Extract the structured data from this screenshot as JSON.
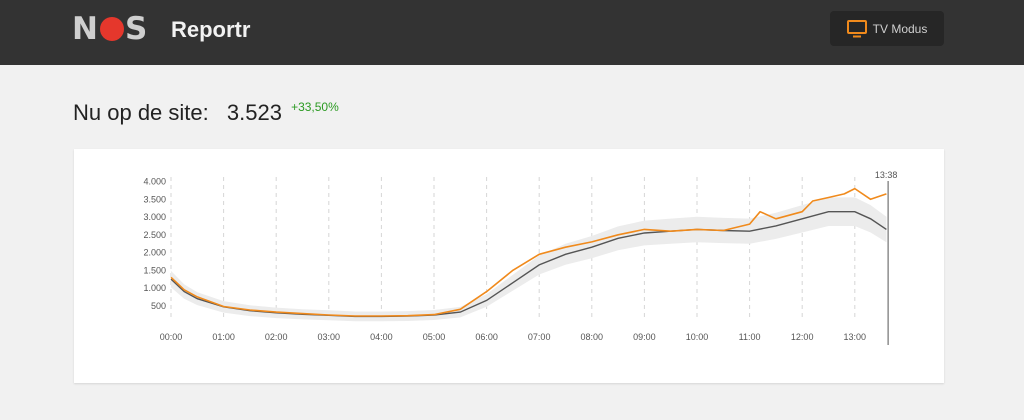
{
  "header": {
    "logo_text": "NOS",
    "app_title": "Reportr",
    "tv_button_label": "TV Modus",
    "tv_icon": "tv-icon"
  },
  "stats": {
    "label": "Nu op de site:",
    "count": "3.523",
    "delta": "+33,50%"
  },
  "colors": {
    "today_line": "#f08a1c",
    "average_line": "#555555",
    "band": "#ececec",
    "delta_positive": "#2b9a22",
    "topbar": "#333333"
  },
  "chart_data": {
    "type": "line",
    "time_marker": "13:38",
    "x_ticks": [
      "00:00",
      "01:00",
      "02:00",
      "03:00",
      "04:00",
      "05:00",
      "06:00",
      "07:00",
      "08:00",
      "09:00",
      "10:00",
      "11:00",
      "12:00",
      "13:00"
    ],
    "y_ticks": [
      "500",
      "1.000",
      "1.500",
      "2.000",
      "2.500",
      "3.000",
      "3.500",
      "4.000"
    ],
    "ylim": [
      0,
      4200
    ],
    "xlim": [
      0,
      13.633
    ],
    "grid": "vertical dashed",
    "series": [
      {
        "color": "#f08a1c",
        "x": [
          0,
          0.25,
          0.5,
          1,
          1.5,
          2,
          2.5,
          3,
          3.5,
          4,
          4.5,
          5,
          5.5,
          6,
          6.5,
          7,
          7.5,
          8,
          8.5,
          9,
          9.5,
          10,
          10.5,
          11,
          11.2,
          11.5,
          12,
          12.2,
          12.5,
          12.8,
          13,
          13.3,
          13.6
        ],
        "values": [
          1300,
          950,
          750,
          480,
          380,
          320,
          280,
          240,
          210,
          210,
          220,
          250,
          400,
          900,
          1500,
          1950,
          2150,
          2300,
          2500,
          2650,
          2600,
          2650,
          2620,
          2800,
          3150,
          2950,
          3150,
          3450,
          3550,
          3650,
          3800,
          3500,
          3650
        ]
      },
      {
        "color": "#555555",
        "x": [
          0,
          0.25,
          0.5,
          1,
          1.5,
          2,
          2.5,
          3,
          3.5,
          4,
          4.5,
          5,
          5.5,
          6,
          6.5,
          7,
          7.5,
          8,
          8.5,
          9,
          9.5,
          10,
          10.5,
          11,
          11.5,
          12,
          12.5,
          13,
          13.3,
          13.6
        ],
        "values": [
          1250,
          900,
          700,
          470,
          360,
          300,
          260,
          230,
          200,
          200,
          210,
          240,
          320,
          650,
          1150,
          1650,
          1950,
          2150,
          2400,
          2550,
          2600,
          2650,
          2620,
          2600,
          2750,
          2950,
          3150,
          3150,
          2950,
          2650
        ]
      }
    ]
  }
}
